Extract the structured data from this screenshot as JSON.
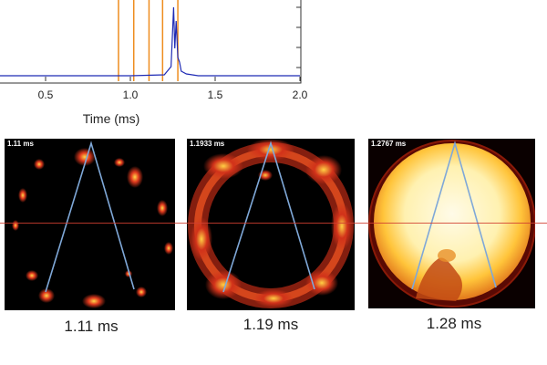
{
  "chart_data": {
    "type": "line",
    "xlabel": "Time (ms)",
    "xlim": [
      0.0,
      2.0
    ],
    "x_ticks": [
      "0.5",
      "1.0",
      "1.5",
      "2.0"
    ],
    "x_tick_values": [
      0.5,
      1.0,
      1.5,
      2.0
    ],
    "y_ticks_visible": 3,
    "markers": [
      0.93,
      1.02,
      1.11,
      1.19,
      1.28
    ],
    "marker_color": "#ee8c1e",
    "series": [
      {
        "color": "#1f2bb5",
        "x": [
          0.0,
          0.5,
          1.0,
          1.2,
          1.24,
          1.255,
          1.262,
          1.27,
          1.28,
          1.29,
          1.3,
          1.33,
          1.4,
          1.6,
          2.0
        ],
        "y": [
          0.5,
          0.5,
          0.5,
          0.6,
          1.5,
          8.0,
          3.5,
          6.5,
          2.5,
          2.0,
          1.0,
          0.7,
          0.5,
          0.5,
          0.5
        ]
      }
    ]
  },
  "frames": [
    {
      "timestamp": "1.11 ms",
      "caption": "1.11 ms",
      "colors": {
        "bg": "#000000",
        "flame": "#e23a1e",
        "hot": "#ffd84a"
      }
    },
    {
      "timestamp": "1.1933 ms",
      "caption": "1.19 ms",
      "colors": {
        "bg": "#000000",
        "flame": "#d2321a",
        "hot": "#ffcf44"
      }
    },
    {
      "timestamp": "1.2767 ms",
      "caption": "1.28 ms",
      "colors": {
        "bg": "#0a0000",
        "flame": "#ffb020",
        "hot": "#fffbe8"
      }
    }
  ],
  "overlay_color": "#7fa8d8",
  "reference_line_color": "#d04030"
}
